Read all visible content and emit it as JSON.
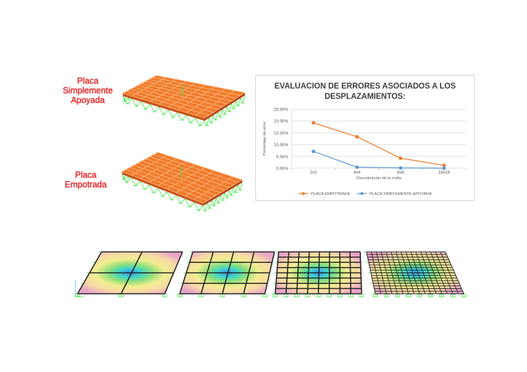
{
  "labels": {
    "simple": [
      "Placa",
      "Simplemente",
      "Apoyada"
    ],
    "empotrada": [
      "Placa",
      "Empotrada"
    ]
  },
  "colors": {
    "label_red": "#e8282b",
    "plate_orange": "#f07a2a",
    "support_green": "#39e639",
    "series_empotrada": "#ed7d31",
    "series_simple": "#5b9bd5"
  },
  "chart_data": {
    "type": "line",
    "title": "EVALUACION DE ERRORES ASOCIADOS A LOS DESPLAZAMIENTOS:",
    "title_lines": [
      "EVALUACION DE ERRORES ASOCIADOS A LOS",
      "DESPLAZAMIENTOS:"
    ],
    "xlabel": "Discretización de la malla",
    "ylabel": "Porcentaje de error",
    "categories": [
      "2x2",
      "4x4",
      "8x8",
      "16x16"
    ],
    "yticks": [
      "25.00%",
      "20.00%",
      "15.00%",
      "10.00%",
      "5.00%",
      "0.00%"
    ],
    "ylim": [
      0,
      25
    ],
    "grid": true,
    "legend_position": "bottom",
    "series": [
      {
        "name": "PLACA EMPOTRADA",
        "values": [
          19.2,
          13.3,
          4.2,
          1.2
        ],
        "color": "#ed7d31"
      },
      {
        "name": "PLACA SIMPLEMENTE APOYADA",
        "values": [
          7.1,
          0.4,
          0.1,
          0.0
        ],
        "color": "#5b9bd5"
      }
    ]
  }
}
